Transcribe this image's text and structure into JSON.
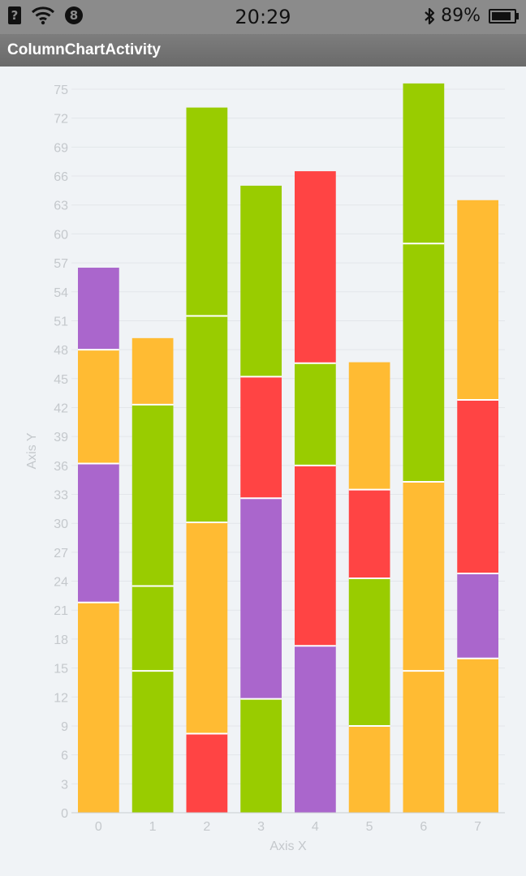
{
  "status_bar": {
    "sim_icon": "sim-card-icon",
    "sim_glyph": "?",
    "wifi_icon": "wifi-icon",
    "badge_icon": "notification-badge-icon",
    "badge_text": "8",
    "time": "20:29",
    "bluetooth_icon": "bluetooth-icon",
    "battery_text": "89%",
    "battery_level": 0.89,
    "battery_icon": "battery-icon"
  },
  "title_bar": {
    "title": "ColumnChartActivity"
  },
  "colors": {
    "orange": "#ffbb33",
    "purple": "#aa66cc",
    "green": "#99cc00",
    "red": "#ff4444",
    "grid": "#e3e6ea",
    "label": "#c4c8cc",
    "background": "#f0f3f6"
  },
  "chart_data": {
    "type": "bar",
    "stacked": true,
    "title": "",
    "xlabel": "Axis X",
    "ylabel": "Axis Y",
    "categories": [
      "0",
      "1",
      "2",
      "3",
      "4",
      "5",
      "6",
      "7"
    ],
    "ylim": [
      0,
      75
    ],
    "yticks": [
      0,
      3,
      6,
      9,
      12,
      15,
      18,
      21,
      24,
      27,
      30,
      33,
      36,
      39,
      42,
      45,
      48,
      51,
      54,
      57,
      60,
      63,
      66,
      69,
      72,
      75
    ],
    "grid": true,
    "legend": "none",
    "stacks": [
      [
        {
          "value": 21.8,
          "color": "#ffbb33"
        },
        {
          "value": 14.4,
          "color": "#aa66cc"
        },
        {
          "value": 11.8,
          "color": "#ffbb33"
        },
        {
          "value": 8.5,
          "color": "#aa66cc"
        }
      ],
      [
        {
          "value": 14.7,
          "color": "#99cc00"
        },
        {
          "value": 8.8,
          "color": "#99cc00"
        },
        {
          "value": 18.8,
          "color": "#99cc00"
        },
        {
          "value": 6.9,
          "color": "#ffbb33"
        }
      ],
      [
        {
          "value": 8.2,
          "color": "#ff4444"
        },
        {
          "value": 21.9,
          "color": "#ffbb33"
        },
        {
          "value": 21.4,
          "color": "#99cc00"
        },
        {
          "value": 21.6,
          "color": "#99cc00"
        }
      ],
      [
        {
          "value": 11.8,
          "color": "#99cc00"
        },
        {
          "value": 20.8,
          "color": "#aa66cc"
        },
        {
          "value": 12.6,
          "color": "#ff4444"
        },
        {
          "value": 19.8,
          "color": "#99cc00"
        }
      ],
      [
        {
          "value": 17.3,
          "color": "#aa66cc"
        },
        {
          "value": 18.7,
          "color": "#ff4444"
        },
        {
          "value": 10.6,
          "color": "#99cc00"
        },
        {
          "value": 19.9,
          "color": "#ff4444"
        }
      ],
      [
        {
          "value": 9.0,
          "color": "#ffbb33"
        },
        {
          "value": 15.3,
          "color": "#99cc00"
        },
        {
          "value": 9.2,
          "color": "#ff4444"
        },
        {
          "value": 13.2,
          "color": "#ffbb33"
        }
      ],
      [
        {
          "value": 14.7,
          "color": "#ffbb33"
        },
        {
          "value": 19.6,
          "color": "#ffbb33"
        },
        {
          "value": 24.7,
          "color": "#99cc00"
        },
        {
          "value": 16.6,
          "color": "#99cc00"
        }
      ],
      [
        {
          "value": 16.0,
          "color": "#ffbb33"
        },
        {
          "value": 8.8,
          "color": "#aa66cc"
        },
        {
          "value": 18.0,
          "color": "#ff4444"
        },
        {
          "value": 20.7,
          "color": "#ffbb33"
        }
      ]
    ]
  }
}
